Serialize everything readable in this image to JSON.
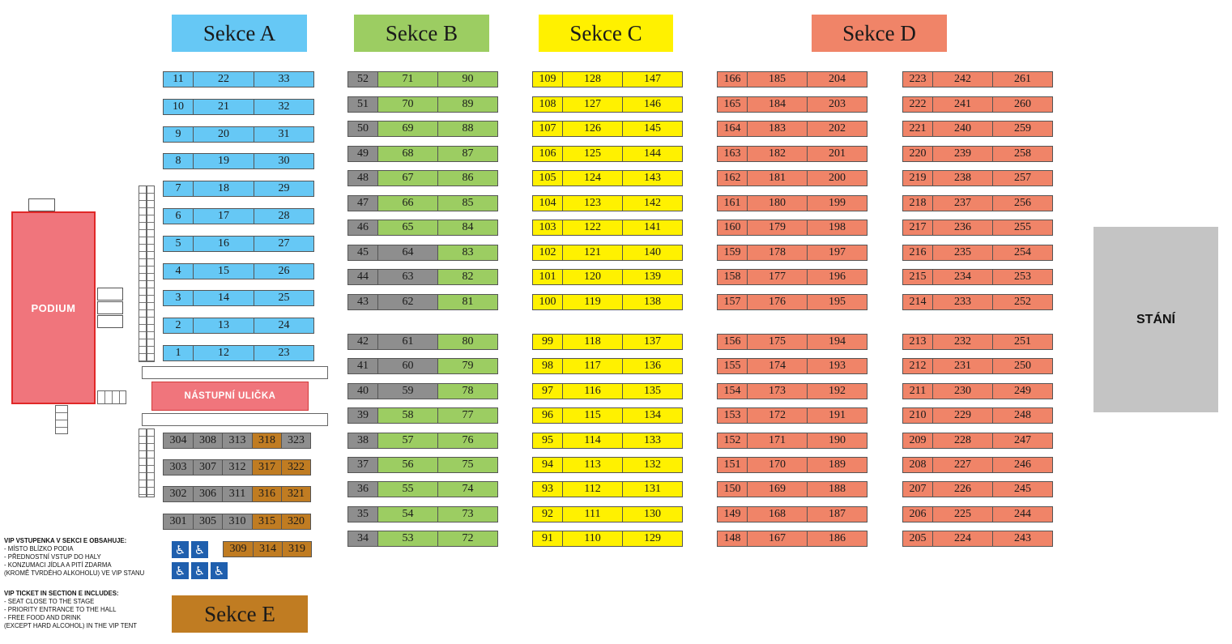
{
  "headers": {
    "a": "Sekce A",
    "b": "Sekce B",
    "c": "Sekce C",
    "d": "Sekce D",
    "e": "Sekce E"
  },
  "labels": {
    "podium": "PODIUM",
    "aisle": "NÁSTUPNÍ ULIČKA",
    "standing": "STÁNÍ"
  },
  "notes": {
    "cz_title": "VIP VSTUPENKA V SEKCI E OBSAHUJE:",
    "cz_lines": [
      "- MÍSTO BLÍZKO PODIA",
      "- PŘEDNOSTNÍ VSTUP DO HALY",
      "- KONZUMACI JÍDLA A PITÍ ZDARMA",
      "(KROMĚ TVRDÉHO ALKOHOLU) VE VIP STANU"
    ],
    "en_title": "VIP TICKET IN SECTION E INCLUDES:",
    "en_lines": [
      "- SEAT CLOSE TO THE STAGE",
      "- PRIORITY ENTRANCE TO THE HALL",
      "- FREE FOOD AND DRINK",
      "(EXCEPT HARD ALCOHOL) IN THE VIP TENT"
    ]
  },
  "colors": {
    "a": "#66c8f5",
    "b": "#9ccd62",
    "c": "#fff100",
    "d": "#f08468",
    "e": "#c07c22",
    "unavailable": "#8e8e8e"
  },
  "accessible_icon": "wheelchair-icon",
  "section_a": [
    [
      "11",
      "22",
      "33"
    ],
    [
      "10",
      "21",
      "32"
    ],
    [
      "9",
      "20",
      "31"
    ],
    [
      "8",
      "19",
      "30"
    ],
    [
      "7",
      "18",
      "29"
    ],
    [
      "6",
      "17",
      "28"
    ],
    [
      "5",
      "16",
      "27"
    ],
    [
      "4",
      "15",
      "26"
    ],
    [
      "3",
      "14",
      "25"
    ],
    [
      "2",
      "13",
      "24"
    ],
    [
      "1",
      "12",
      "23"
    ]
  ],
  "section_b": [
    [
      {
        "n": "52",
        "s": "u"
      },
      {
        "n": "71",
        "s": "b"
      },
      {
        "n": "90",
        "s": "b"
      }
    ],
    [
      {
        "n": "51",
        "s": "u"
      },
      {
        "n": "70",
        "s": "b"
      },
      {
        "n": "89",
        "s": "b"
      }
    ],
    [
      {
        "n": "50",
        "s": "u"
      },
      {
        "n": "69",
        "s": "b"
      },
      {
        "n": "88",
        "s": "b"
      }
    ],
    [
      {
        "n": "49",
        "s": "u"
      },
      {
        "n": "68",
        "s": "b"
      },
      {
        "n": "87",
        "s": "b"
      }
    ],
    [
      {
        "n": "48",
        "s": "u"
      },
      {
        "n": "67",
        "s": "b"
      },
      {
        "n": "86",
        "s": "b"
      }
    ],
    [
      {
        "n": "47",
        "s": "u"
      },
      {
        "n": "66",
        "s": "b"
      },
      {
        "n": "85",
        "s": "b"
      }
    ],
    [
      {
        "n": "46",
        "s": "u"
      },
      {
        "n": "65",
        "s": "b"
      },
      {
        "n": "84",
        "s": "b"
      }
    ],
    [
      {
        "n": "45",
        "s": "u"
      },
      {
        "n": "64",
        "s": "u"
      },
      {
        "n": "83",
        "s": "b"
      }
    ],
    [
      {
        "n": "44",
        "s": "u"
      },
      {
        "n": "63",
        "s": "u"
      },
      {
        "n": "82",
        "s": "b"
      }
    ],
    [
      {
        "n": "43",
        "s": "u"
      },
      {
        "n": "62",
        "s": "u"
      },
      {
        "n": "81",
        "s": "b"
      }
    ],
    [
      {
        "n": "42",
        "s": "u"
      },
      {
        "n": "61",
        "s": "u"
      },
      {
        "n": "80",
        "s": "b"
      }
    ],
    [
      {
        "n": "41",
        "s": "u"
      },
      {
        "n": "60",
        "s": "u"
      },
      {
        "n": "79",
        "s": "b"
      }
    ],
    [
      {
        "n": "40",
        "s": "u"
      },
      {
        "n": "59",
        "s": "u"
      },
      {
        "n": "78",
        "s": "b"
      }
    ],
    [
      {
        "n": "39",
        "s": "u"
      },
      {
        "n": "58",
        "s": "b"
      },
      {
        "n": "77",
        "s": "b"
      }
    ],
    [
      {
        "n": "38",
        "s": "u"
      },
      {
        "n": "57",
        "s": "b"
      },
      {
        "n": "76",
        "s": "b"
      }
    ],
    [
      {
        "n": "37",
        "s": "u"
      },
      {
        "n": "56",
        "s": "b"
      },
      {
        "n": "75",
        "s": "b"
      }
    ],
    [
      {
        "n": "36",
        "s": "u"
      },
      {
        "n": "55",
        "s": "b"
      },
      {
        "n": "74",
        "s": "b"
      }
    ],
    [
      {
        "n": "35",
        "s": "u"
      },
      {
        "n": "54",
        "s": "b"
      },
      {
        "n": "73",
        "s": "b"
      }
    ],
    [
      {
        "n": "34",
        "s": "u"
      },
      {
        "n": "53",
        "s": "b"
      },
      {
        "n": "72",
        "s": "b"
      }
    ]
  ],
  "section_c": [
    [
      "109",
      "128",
      "147"
    ],
    [
      "108",
      "127",
      "146"
    ],
    [
      "107",
      "126",
      "145"
    ],
    [
      "106",
      "125",
      "144"
    ],
    [
      "105",
      "124",
      "143"
    ],
    [
      "104",
      "123",
      "142"
    ],
    [
      "103",
      "122",
      "141"
    ],
    [
      "102",
      "121",
      "140"
    ],
    [
      "101",
      "120",
      "139"
    ],
    [
      "100",
      "119",
      "138"
    ],
    [
      "99",
      "118",
      "137"
    ],
    [
      "98",
      "117",
      "136"
    ],
    [
      "97",
      "116",
      "135"
    ],
    [
      "96",
      "115",
      "134"
    ],
    [
      "95",
      "114",
      "133"
    ],
    [
      "94",
      "113",
      "132"
    ],
    [
      "93",
      "112",
      "131"
    ],
    [
      "92",
      "111",
      "130"
    ],
    [
      "91",
      "110",
      "129"
    ]
  ],
  "section_d1": [
    [
      "166",
      "185",
      "204"
    ],
    [
      "165",
      "184",
      "203"
    ],
    [
      "164",
      "183",
      "202"
    ],
    [
      "163",
      "182",
      "201"
    ],
    [
      "162",
      "181",
      "200"
    ],
    [
      "161",
      "180",
      "199"
    ],
    [
      "160",
      "179",
      "198"
    ],
    [
      "159",
      "178",
      "197"
    ],
    [
      "158",
      "177",
      "196"
    ],
    [
      "157",
      "176",
      "195"
    ],
    [
      "156",
      "175",
      "194"
    ],
    [
      "155",
      "174",
      "193"
    ],
    [
      "154",
      "173",
      "192"
    ],
    [
      "153",
      "172",
      "191"
    ],
    [
      "152",
      "171",
      "190"
    ],
    [
      "151",
      "170",
      "189"
    ],
    [
      "150",
      "169",
      "188"
    ],
    [
      "149",
      "168",
      "187"
    ],
    [
      "148",
      "167",
      "186"
    ]
  ],
  "section_d2": [
    [
      "223",
      "242",
      "261"
    ],
    [
      "222",
      "241",
      "260"
    ],
    [
      "221",
      "240",
      "259"
    ],
    [
      "220",
      "239",
      "258"
    ],
    [
      "219",
      "238",
      "257"
    ],
    [
      "218",
      "237",
      "256"
    ],
    [
      "217",
      "236",
      "255"
    ],
    [
      "216",
      "235",
      "254"
    ],
    [
      "215",
      "234",
      "253"
    ],
    [
      "214",
      "233",
      "252"
    ],
    [
      "213",
      "232",
      "251"
    ],
    [
      "212",
      "231",
      "250"
    ],
    [
      "211",
      "230",
      "249"
    ],
    [
      "210",
      "229",
      "248"
    ],
    [
      "209",
      "228",
      "247"
    ],
    [
      "208",
      "227",
      "246"
    ],
    [
      "207",
      "226",
      "245"
    ],
    [
      "206",
      "225",
      "244"
    ],
    [
      "205",
      "224",
      "243"
    ]
  ],
  "section_e": [
    [
      {
        "n": "304",
        "s": "u"
      },
      {
        "n": "308",
        "s": "u"
      },
      {
        "n": "313",
        "s": "u"
      },
      {
        "n": "318",
        "s": "e"
      },
      {
        "n": "323",
        "s": "u"
      }
    ],
    [
      {
        "n": "303",
        "s": "u"
      },
      {
        "n": "307",
        "s": "u"
      },
      {
        "n": "312",
        "s": "u"
      },
      {
        "n": "317",
        "s": "e"
      },
      {
        "n": "322",
        "s": "e"
      }
    ],
    [
      {
        "n": "302",
        "s": "u"
      },
      {
        "n": "306",
        "s": "u"
      },
      {
        "n": "311",
        "s": "u"
      },
      {
        "n": "316",
        "s": "e"
      },
      {
        "n": "321",
        "s": "e"
      }
    ],
    [
      {
        "n": "301",
        "s": "u"
      },
      {
        "n": "305",
        "s": "u"
      },
      {
        "n": "310",
        "s": "u"
      },
      {
        "n": "315",
        "s": "e"
      },
      {
        "n": "320",
        "s": "e"
      }
    ],
    [
      {
        "n": "309",
        "s": "e"
      },
      {
        "n": "314",
        "s": "e"
      },
      {
        "n": "319",
        "s": "e"
      }
    ]
  ]
}
